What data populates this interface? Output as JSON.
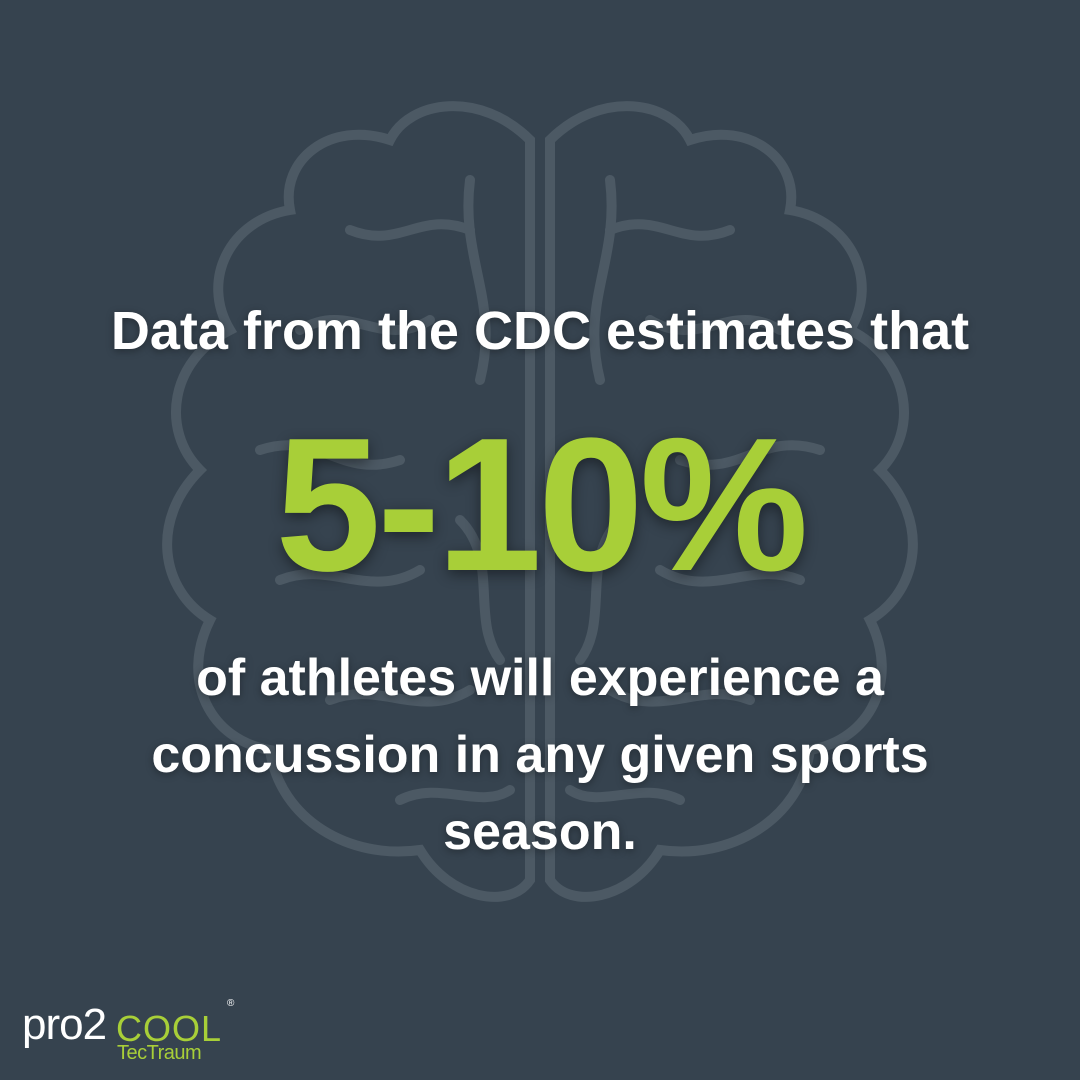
{
  "headline": {
    "intro": "Data from the CDC estimates that",
    "stat": "5-10%",
    "body": "of athletes will experience a concussion in any given sports season."
  },
  "logo": {
    "pro": "pro2",
    "cool": "COOL",
    "registered": "®",
    "sub": "TecTraum"
  }
}
